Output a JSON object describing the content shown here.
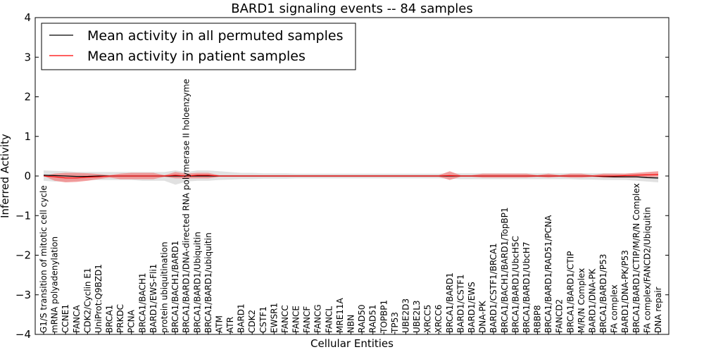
{
  "chart_data": {
    "type": "line",
    "title": "BARD1 signaling events -- 84 samples",
    "xlabel": "Cellular Entities",
    "ylabel": "Inferred Activity",
    "ylim": [
      -4,
      4
    ],
    "yticks": [
      "4",
      "3",
      "2",
      "1",
      "0",
      "−1",
      "−2",
      "−3",
      "−4"
    ],
    "ytick_values": [
      4,
      3,
      2,
      1,
      0,
      -1,
      -2,
      -3,
      -4
    ],
    "legend_position": "top-left",
    "colors": {
      "permuted": "#000000",
      "patient": "#ff0000",
      "patient_band": "#f08080",
      "permuted_band": "#d9d9d9"
    },
    "categories": [
      "G1/S transition of mitotic cell cycle",
      "mRNA polyadenylation",
      "CCNE1",
      "FANCA",
      "CDK2/Cyclin E1",
      "UniProt:Q9BZD1",
      "BRCA1",
      "PRKDC",
      "PCNA",
      "BRCA1/BACH1",
      "BARD1/EWS-Fli1",
      "protein ubiquitination",
      "BRCA1/BACH1/BARD1",
      "BRCA1/BARD1/DNA-directed RNA polymerase II holoenzyme",
      "BRCA1/BARD1/Ubiquitin",
      "BRCA1/BARD1/ubiquitin",
      "ATM",
      "ATR",
      "BARD1",
      "CDK2",
      "CSTF1",
      "EWSR1",
      "FANCC",
      "FANCE",
      "FANCF",
      "FANCG",
      "FANCL",
      "MRE11A",
      "NBN",
      "RAD50",
      "RAD51",
      "TOPBP1",
      "TP53",
      "UBE2D3",
      "UBE2L3",
      "XRCC5",
      "XRCC6",
      "BRCA1/BARD1",
      "BARD1/CSTF1",
      "BARD1/EWS",
      "DNA-PK",
      "BARD1/CSTF1/BRCA1",
      "BRCA1/BACH1/BARD1/TopBP1",
      "BRCA1/BARD1/UbcH5C",
      "BRCA1/BARD1/UbcH7",
      "RBBP8",
      "BRCA1/BARD1/RAD51/PCNA",
      "FANCD2",
      "BRCA1/BARD1/CTIP",
      "M/R/N Complex",
      "BARD1/DNA-PK",
      "BRCA1/BARD1/P53",
      "FA complex",
      "BARD1/DNA-PK/P53",
      "BRCA1/BARD1/CTIP/M/R/N Complex",
      "FA complex/FANCD2/Ubiquitin",
      "DNA repair"
    ],
    "series": [
      {
        "name": "Mean activity in all permuted samples",
        "color": "#000000",
        "values": [
          0.02,
          0.01,
          0.0,
          -0.01,
          -0.01,
          0.0,
          0.0,
          0.0,
          0.0,
          0.0,
          0.0,
          0.0,
          0.0,
          0.0,
          0.0,
          0.0,
          0.0,
          0.0,
          0.0,
          0.0,
          0.0,
          0.0,
          0.0,
          0.0,
          0.0,
          0.0,
          0.0,
          0.0,
          0.0,
          0.0,
          0.0,
          0.0,
          0.0,
          0.0,
          0.0,
          0.0,
          0.0,
          0.0,
          0.0,
          0.0,
          0.0,
          0.0,
          0.0,
          0.0,
          0.0,
          0.0,
          0.0,
          0.0,
          0.0,
          0.0,
          0.0,
          -0.01,
          -0.02,
          -0.02,
          -0.02,
          -0.04,
          -0.05
        ],
        "band_upper": [
          0.14,
          0.13,
          0.12,
          0.1,
          0.1,
          0.1,
          0.1,
          0.1,
          0.1,
          0.1,
          0.1,
          0.1,
          0.14,
          0.1,
          0.14,
          0.14,
          0.12,
          0.1,
          0.08,
          0.08,
          0.07,
          0.07,
          0.07,
          0.06,
          0.06,
          0.06,
          0.06,
          0.06,
          0.06,
          0.06,
          0.06,
          0.06,
          0.06,
          0.06,
          0.06,
          0.06,
          0.06,
          0.07,
          0.07,
          0.07,
          0.07,
          0.07,
          0.07,
          0.07,
          0.07,
          0.07,
          0.07,
          0.07,
          0.07,
          0.07,
          0.07,
          0.07,
          0.07,
          0.06,
          0.06,
          0.05,
          0.04
        ],
        "band_lower": [
          -0.12,
          -0.14,
          -0.14,
          -0.12,
          -0.1,
          -0.1,
          -0.1,
          -0.1,
          -0.1,
          -0.12,
          -0.12,
          -0.12,
          -0.22,
          -0.14,
          -0.12,
          -0.12,
          -0.1,
          -0.09,
          -0.08,
          -0.08,
          -0.07,
          -0.07,
          -0.07,
          -0.06,
          -0.06,
          -0.06,
          -0.06,
          -0.06,
          -0.06,
          -0.06,
          -0.06,
          -0.06,
          -0.06,
          -0.06,
          -0.06,
          -0.06,
          -0.06,
          -0.07,
          -0.08,
          -0.08,
          -0.08,
          -0.08,
          -0.08,
          -0.08,
          -0.08,
          -0.08,
          -0.08,
          -0.08,
          -0.08,
          -0.09,
          -0.09,
          -0.1,
          -0.1,
          -0.1,
          -0.12,
          -0.14,
          -0.16
        ]
      },
      {
        "name": "Mean activity in patient samples",
        "color": "#ff0000",
        "values": [
          0.0,
          -0.02,
          -0.05,
          -0.05,
          -0.03,
          -0.02,
          0.0,
          0.0,
          0.0,
          0.0,
          0.0,
          0.0,
          0.02,
          0.0,
          0.02,
          0.02,
          0.0,
          0.0,
          0.0,
          0.0,
          0.0,
          0.0,
          0.0,
          0.0,
          0.0,
          0.0,
          0.0,
          0.0,
          0.0,
          0.0,
          0.0,
          0.0,
          0.0,
          0.0,
          0.0,
          0.0,
          0.0,
          0.01,
          0.0,
          0.0,
          0.0,
          0.0,
          0.0,
          0.0,
          0.0,
          0.0,
          0.0,
          0.0,
          0.0,
          0.0,
          0.0,
          0.0,
          0.0,
          0.01,
          0.02,
          0.03,
          0.04
        ],
        "band_upper": [
          0.0,
          0.06,
          0.08,
          0.08,
          0.07,
          0.05,
          0.02,
          0.06,
          0.08,
          0.08,
          0.08,
          0.02,
          0.1,
          0.06,
          0.08,
          0.08,
          0.02,
          0.02,
          0.02,
          0.02,
          0.02,
          0.02,
          0.02,
          0.02,
          0.02,
          0.02,
          0.02,
          0.02,
          0.02,
          0.02,
          0.02,
          0.02,
          0.02,
          0.02,
          0.02,
          0.02,
          0.02,
          0.12,
          0.02,
          0.02,
          0.06,
          0.06,
          0.06,
          0.06,
          0.06,
          0.02,
          0.06,
          0.02,
          0.06,
          0.06,
          0.02,
          0.06,
          0.06,
          0.06,
          0.08,
          0.1,
          0.12
        ],
        "band_lower": [
          0.0,
          -0.12,
          -0.16,
          -0.15,
          -0.12,
          -0.08,
          -0.04,
          -0.08,
          -0.08,
          -0.08,
          -0.08,
          -0.02,
          -0.06,
          -0.06,
          -0.06,
          -0.06,
          -0.02,
          -0.02,
          -0.02,
          -0.02,
          -0.02,
          -0.02,
          -0.02,
          -0.02,
          -0.02,
          -0.02,
          -0.02,
          -0.02,
          -0.02,
          -0.02,
          -0.02,
          -0.02,
          -0.02,
          -0.02,
          -0.02,
          -0.02,
          -0.02,
          -0.1,
          -0.02,
          -0.02,
          -0.04,
          -0.04,
          -0.04,
          -0.04,
          -0.04,
          -0.02,
          -0.04,
          -0.02,
          -0.04,
          -0.04,
          -0.02,
          -0.04,
          -0.04,
          -0.04,
          -0.04,
          -0.03,
          -0.02
        ]
      }
    ]
  }
}
